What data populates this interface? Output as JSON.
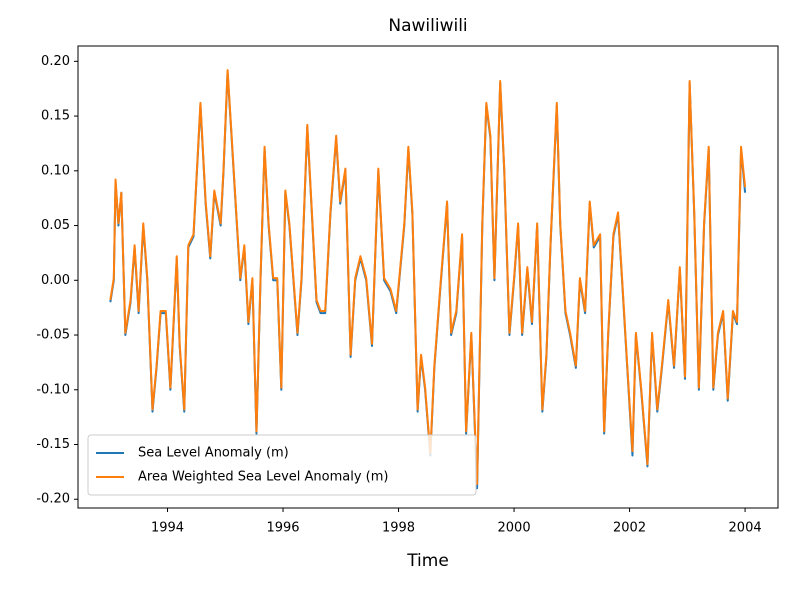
{
  "chart_data": {
    "type": "line",
    "title": "Nawiliwili",
    "xlabel": "Time",
    "x": [
      1993.01,
      1993.07,
      1993.1,
      1993.15,
      1993.2,
      1993.27,
      1993.36,
      1993.43,
      1993.5,
      1993.58,
      1993.65,
      1993.74,
      1993.81,
      1993.88,
      1993.97,
      1994.05,
      1994.16,
      1994.21,
      1994.29,
      1994.36,
      1994.45,
      1994.57,
      1994.66,
      1994.74,
      1994.81,
      1994.92,
      1994.97,
      1995.04,
      1995.11,
      1995.19,
      1995.26,
      1995.33,
      1995.4,
      1995.47,
      1995.54,
      1995.61,
      1995.68,
      1995.75,
      1995.83,
      1995.9,
      1995.97,
      1996.04,
      1996.11,
      1996.18,
      1996.25,
      1996.32,
      1996.42,
      1996.49,
      1996.58,
      1996.65,
      1996.73,
      1996.82,
      1996.92,
      1996.99,
      1997.08,
      1997.17,
      1997.25,
      1997.34,
      1997.44,
      1997.54,
      1997.65,
      1997.75,
      1997.86,
      1997.96,
      1998.1,
      1998.17,
      1998.24,
      1998.33,
      1998.39,
      1998.46,
      1998.55,
      1998.62,
      1998.72,
      1998.84,
      1998.91,
      1999.0,
      1999.1,
      1999.17,
      1999.26,
      1999.36,
      1999.45,
      1999.52,
      1999.59,
      1999.66,
      1999.76,
      1999.83,
      1999.92,
      2000.0,
      2000.07,
      2000.14,
      2000.23,
      2000.31,
      2000.4,
      2000.49,
      2000.56,
      2000.63,
      2000.74,
      2000.8,
      2000.89,
      2000.97,
      2001.07,
      2001.14,
      2001.23,
      2001.31,
      2001.38,
      2001.49,
      2001.56,
      2001.63,
      2001.72,
      2001.8,
      2001.87,
      2001.96,
      2002.05,
      2002.11,
      2002.2,
      2002.31,
      2002.39,
      2002.48,
      2002.56,
      2002.67,
      2002.77,
      2002.87,
      2002.96,
      2003.04,
      2003.12,
      2003.2,
      2003.29,
      2003.37,
      2003.45,
      2003.53,
      2003.62,
      2003.7,
      2003.79,
      2003.86,
      2003.93,
      2004.0
    ],
    "series": [
      {
        "name": "Sea Level Anomaly (m)",
        "color": "#1f77b4",
        "values": [
          -0.02,
          0.0,
          0.09,
          0.05,
          0.08,
          -0.05,
          -0.02,
          0.03,
          -0.03,
          0.05,
          0.0,
          -0.12,
          -0.08,
          -0.03,
          -0.03,
          -0.1,
          0.02,
          -0.06,
          -0.12,
          0.03,
          0.04,
          0.16,
          0.07,
          0.02,
          0.08,
          0.05,
          0.1,
          0.19,
          0.13,
          0.06,
          0.0,
          0.03,
          -0.04,
          0.0,
          -0.14,
          0.0,
          0.12,
          0.05,
          0.0,
          0.0,
          -0.1,
          0.08,
          0.05,
          0.0,
          -0.05,
          0.0,
          0.14,
          0.07,
          -0.02,
          -0.03,
          -0.03,
          0.06,
          0.13,
          0.07,
          0.1,
          -0.07,
          0.0,
          0.02,
          0.0,
          -0.06,
          0.1,
          0.0,
          -0.01,
          -0.03,
          0.05,
          0.12,
          0.06,
          -0.12,
          -0.07,
          -0.1,
          -0.16,
          -0.08,
          -0.01,
          0.07,
          -0.05,
          -0.03,
          0.04,
          -0.14,
          -0.05,
          -0.19,
          0.05,
          0.16,
          0.13,
          0.0,
          0.18,
          0.1,
          -0.05,
          0.0,
          0.05,
          -0.05,
          0.01,
          -0.04,
          0.05,
          -0.12,
          -0.07,
          0.03,
          0.16,
          0.05,
          -0.03,
          -0.05,
          -0.08,
          0.0,
          -0.03,
          0.07,
          0.03,
          0.04,
          -0.14,
          -0.05,
          0.04,
          0.06,
          0.0,
          -0.08,
          -0.16,
          -0.05,
          -0.1,
          -0.17,
          -0.05,
          -0.12,
          -0.08,
          -0.02,
          -0.08,
          0.01,
          -0.09,
          0.18,
          0.06,
          -0.1,
          0.05,
          0.12,
          -0.1,
          -0.05,
          -0.03,
          -0.11,
          -0.03,
          -0.04,
          0.12,
          0.08
        ]
      },
      {
        "name": "Area Weighted Sea Level Anomaly (m)",
        "color": "#ff7f0e",
        "values": [
          -0.018,
          0.002,
          0.092,
          0.052,
          0.08,
          -0.048,
          -0.018,
          0.032,
          -0.028,
          0.052,
          0.002,
          -0.118,
          -0.078,
          -0.028,
          -0.028,
          -0.098,
          0.022,
          -0.058,
          -0.118,
          0.032,
          0.042,
          0.162,
          0.072,
          0.022,
          0.082,
          0.052,
          0.102,
          0.192,
          0.132,
          0.062,
          0.002,
          0.032,
          -0.038,
          0.002,
          -0.138,
          0.002,
          0.122,
          0.052,
          0.002,
          0.002,
          -0.098,
          0.082,
          0.052,
          0.002,
          -0.048,
          0.002,
          0.142,
          0.072,
          -0.018,
          -0.028,
          -0.028,
          0.062,
          0.132,
          0.072,
          0.102,
          -0.068,
          0.002,
          0.022,
          0.002,
          -0.058,
          0.102,
          0.002,
          -0.008,
          -0.028,
          0.052,
          0.122,
          0.062,
          -0.118,
          -0.068,
          -0.098,
          -0.158,
          -0.078,
          -0.008,
          0.072,
          -0.048,
          -0.028,
          0.042,
          -0.138,
          -0.048,
          -0.186,
          0.052,
          0.162,
          0.132,
          0.002,
          0.182,
          0.102,
          -0.048,
          0.002,
          0.052,
          -0.048,
          0.012,
          -0.038,
          0.052,
          -0.118,
          -0.068,
          0.032,
          0.162,
          0.052,
          -0.028,
          -0.048,
          -0.078,
          0.002,
          -0.028,
          0.072,
          0.032,
          0.042,
          -0.138,
          -0.048,
          0.042,
          0.062,
          0.002,
          -0.078,
          -0.156,
          -0.048,
          -0.098,
          -0.168,
          -0.048,
          -0.118,
          -0.078,
          -0.018,
          -0.078,
          0.012,
          -0.088,
          0.182,
          0.062,
          -0.098,
          0.052,
          0.122,
          -0.098,
          -0.048,
          -0.028,
          -0.108,
          -0.028,
          -0.038,
          0.122,
          0.085
        ]
      }
    ],
    "xlim": [
      1992.45,
      2004.57
    ],
    "xticks": [
      1994,
      1996,
      1998,
      2000,
      2002,
      2004
    ],
    "ylim": [
      -0.208,
      0.214
    ],
    "yticks": [
      {
        "value": -0.2,
        "label": "-0.20"
      },
      -0.15,
      {
        "value": -0.1,
        "label": "-0.10"
      },
      -0.05,
      {
        "value": 0,
        "label": "0.00"
      },
      0.05,
      {
        "value": 0.1,
        "label": "0.10"
      },
      0.15,
      {
        "value": 0.2,
        "label": "0.20"
      }
    ],
    "grid": false,
    "legend": "lower left"
  }
}
